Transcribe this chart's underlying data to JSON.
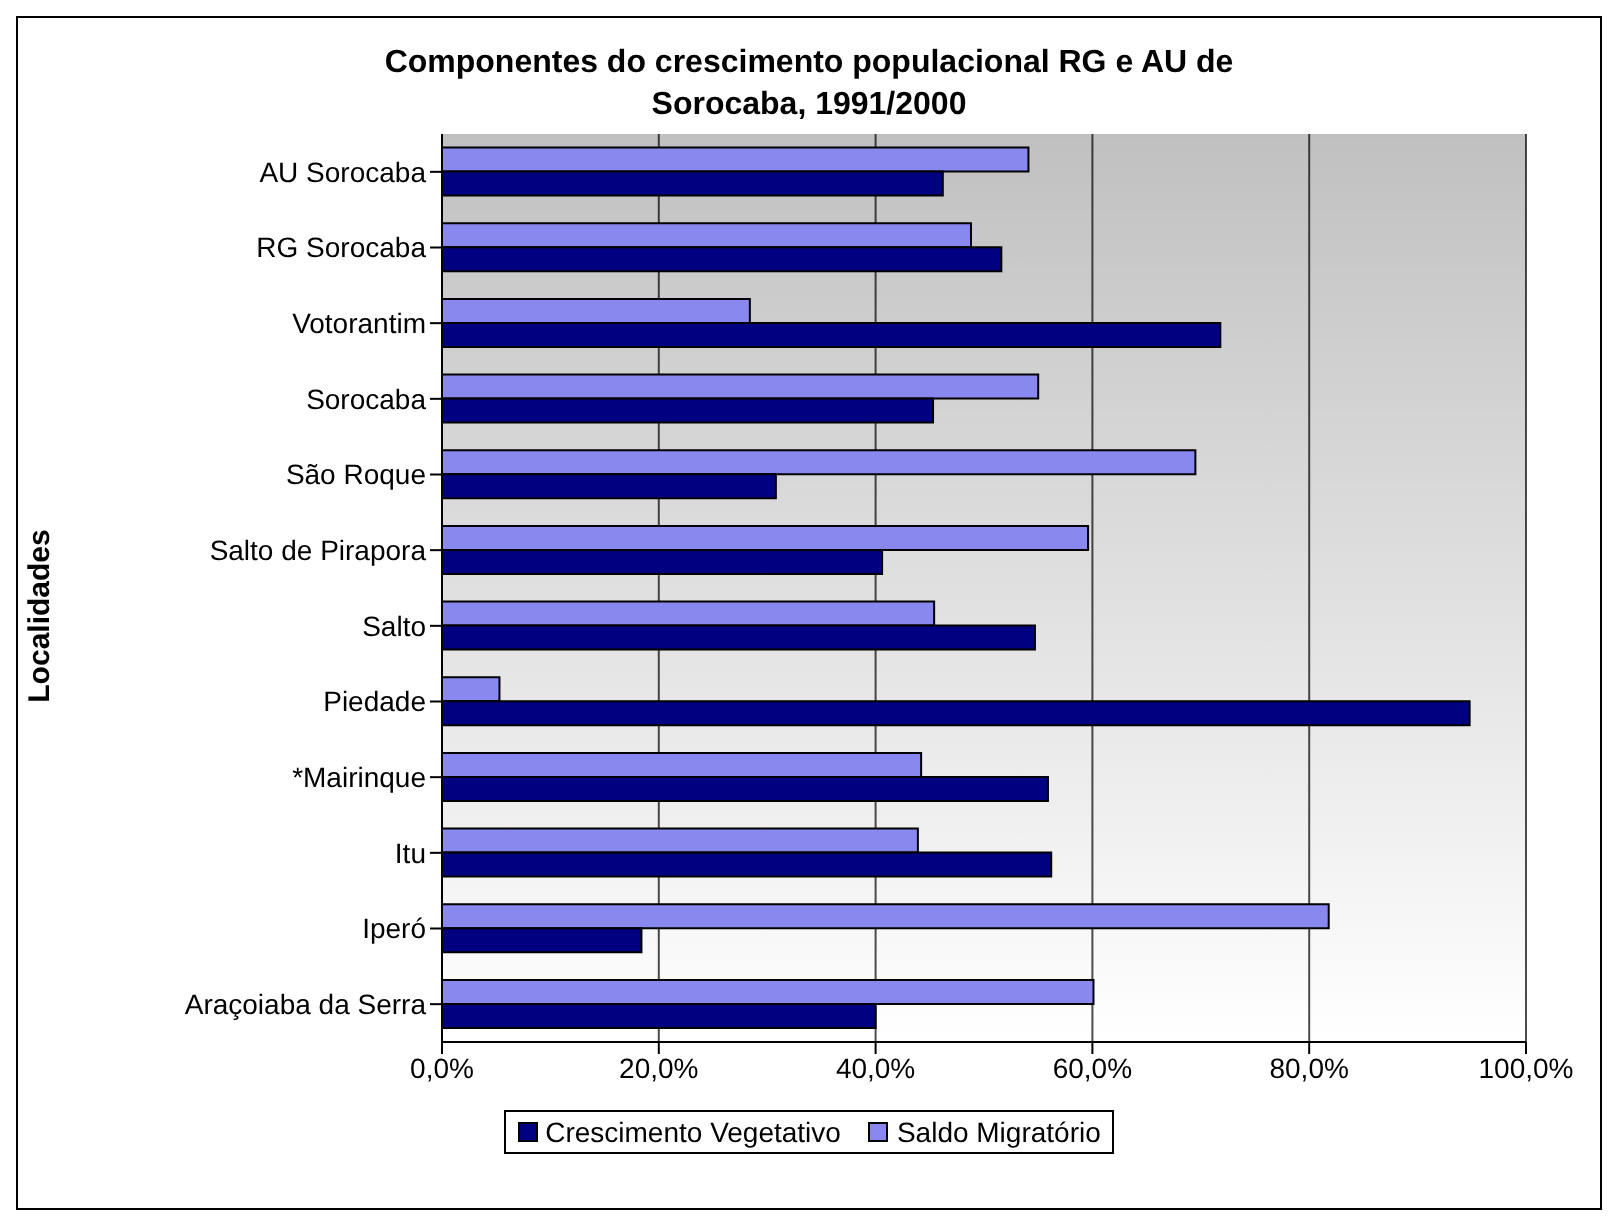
{
  "chart_data": {
    "type": "bar",
    "orientation": "horizontal",
    "title": "Componentes do crescimento populacional RG e AU de Sorocaba, 1991/2000",
    "ylabel": "Localidades",
    "categories": [
      "AU Sorocaba",
      "RG Sorocaba",
      "Votorantim",
      "Sorocaba",
      "São Roque",
      "Salto de Pirapora",
      "Salto",
      "Piedade",
      "*Mairinque",
      "Itu",
      "Iperó",
      "Araçoiaba da Serra"
    ],
    "series": [
      {
        "name": "Crescimento Vegetativo",
        "color": "#000080",
        "values": [
          46.2,
          51.6,
          71.8,
          45.3,
          30.8,
          40.6,
          54.7,
          94.8,
          55.9,
          56.2,
          18.4,
          40.0
        ]
      },
      {
        "name": "Saldo Migratório",
        "color": "#8888ee",
        "values": [
          54.1,
          48.8,
          28.4,
          55.0,
          69.5,
          59.6,
          45.4,
          5.3,
          44.2,
          43.9,
          81.8,
          60.1
        ]
      }
    ],
    "xlim": [
      0,
      100
    ],
    "xticks": [
      {
        "value": 0,
        "label": "0,0%"
      },
      {
        "value": 20,
        "label": "20,0%"
      },
      {
        "value": 40,
        "label": "40,0%"
      },
      {
        "value": 60,
        "label": "60,0%"
      },
      {
        "value": 80,
        "label": "80,0%"
      },
      {
        "value": 100,
        "label": "100,0%"
      }
    ],
    "grid": "x",
    "legend": "bottom"
  }
}
